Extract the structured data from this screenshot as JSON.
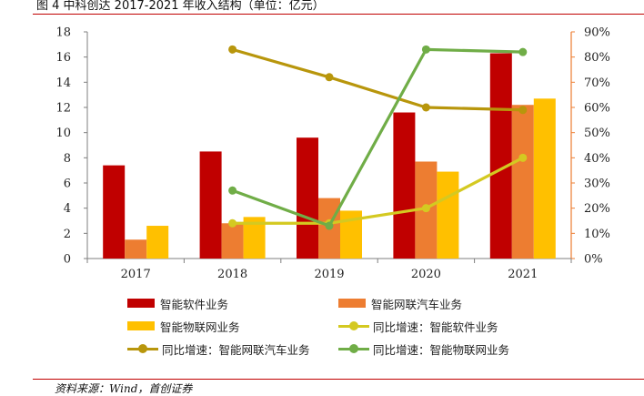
{
  "header": {
    "title": "图 4 中科创达 2017-2021 年收入结构（单位：亿元）"
  },
  "footer": {
    "source": "资料来源：Wind，首创证券"
  },
  "chart_data": {
    "type": "bar",
    "categories": [
      "2017",
      "2018",
      "2019",
      "2020",
      "2021"
    ],
    "ylim": [
      0,
      18
    ],
    "y_ticks": [
      "0",
      "2",
      "4",
      "6",
      "8",
      "10",
      "12",
      "14",
      "16",
      "18"
    ],
    "y2lim": [
      0,
      90
    ],
    "y2_ticks": [
      "0%",
      "10%",
      "20%",
      "30%",
      "40%",
      "50%",
      "60%",
      "70%",
      "80%",
      "90%"
    ],
    "series": [
      {
        "name": "智能软件业务",
        "type": "bar",
        "axis": "left",
        "color": "#c00000",
        "values": [
          7.4,
          8.5,
          9.6,
          11.6,
          16.3
        ]
      },
      {
        "name": "智能网联汽车业务",
        "type": "bar",
        "axis": "left",
        "color": "#ed7d31",
        "values": [
          1.5,
          2.8,
          4.8,
          7.7,
          12.2
        ]
      },
      {
        "name": "智能物联网业务",
        "type": "bar",
        "axis": "left",
        "color": "#ffc000",
        "values": [
          2.6,
          3.3,
          3.8,
          6.9,
          12.7
        ]
      },
      {
        "name": "同比增速：智能软件业务",
        "type": "line",
        "axis": "right",
        "color": "#d4c921",
        "values": [
          null,
          14,
          14,
          20,
          40
        ]
      },
      {
        "name": "同比增速：智能网联汽车业务",
        "type": "line",
        "axis": "right",
        "color": "#b8960c",
        "values": [
          null,
          83,
          72,
          60,
          59
        ]
      },
      {
        "name": "同比增速：智能物联网业务",
        "type": "line",
        "axis": "right",
        "color": "#70ad47",
        "values": [
          null,
          27,
          13,
          83,
          82
        ]
      }
    ],
    "legend_position": "bottom",
    "grid": false
  }
}
